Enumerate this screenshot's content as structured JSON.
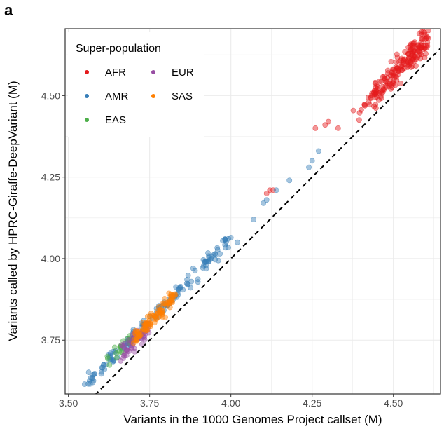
{
  "panel_label": "a",
  "chart_data": {
    "type": "scatter",
    "xlabel": "Variants in the 1000 Genomes Project callset (M)",
    "ylabel": "Variants called by HPRC-Giraffe-DeepVariant (M)",
    "xlim": [
      3.49,
      4.645
    ],
    "ylim": [
      3.585,
      4.705
    ],
    "xticks": [
      3.5,
      3.75,
      4.0,
      4.25,
      4.5
    ],
    "xtick_labels": [
      "3.50",
      "3.75",
      "4.00",
      "4.25",
      "4.50"
    ],
    "yticks": [
      3.75,
      4.0,
      4.25,
      4.5
    ],
    "ytick_labels": [
      "3.75",
      "4.00",
      "4.25",
      "4.50"
    ],
    "grid": true,
    "reference_line": {
      "style": "dashed",
      "slope": 1,
      "intercept": 0,
      "label": ""
    },
    "legend": {
      "title": "Super-population",
      "placement": "top-left",
      "entries": [
        {
          "name": "AFR",
          "color": "#e41a1c"
        },
        {
          "name": "AMR",
          "color": "#377eb8"
        },
        {
          "name": "EAS",
          "color": "#4daf4a"
        },
        {
          "name": "EUR",
          "color": "#984ea3"
        },
        {
          "name": "SAS",
          "color": "#ff7f00"
        }
      ]
    },
    "series": [
      {
        "name": "AFR",
        "color": "#e41a1c",
        "clusters": [
          {
            "x_range": [
              4.44,
              4.61
            ],
            "y_offset": 0.065,
            "spread_y": 0.018,
            "n": 190
          },
          {
            "x_range": [
              4.37,
              4.44
            ],
            "y_offset": 0.06,
            "spread_y": 0.012,
            "n": 14
          }
        ],
        "points": [
          [
            4.26,
            4.4
          ],
          [
            4.29,
            4.41
          ],
          [
            4.33,
            4.4
          ],
          [
            4.3,
            4.42
          ],
          [
            4.12,
            4.21
          ],
          [
            4.13,
            4.21
          ],
          [
            4.11,
            4.2
          ]
        ]
      },
      {
        "name": "AMR",
        "color": "#377eb8",
        "clusters": [
          {
            "x_range": [
              3.56,
              4.0
            ],
            "y_offset": 0.06,
            "spread_y": 0.012,
            "n": 150
          }
        ],
        "points": [
          [
            3.55,
            3.615
          ],
          [
            3.565,
            3.625
          ],
          [
            4.07,
            4.12
          ],
          [
            4.1,
            4.17
          ],
          [
            4.11,
            4.18
          ],
          [
            4.14,
            4.21
          ],
          [
            4.18,
            4.24
          ],
          [
            4.24,
            4.28
          ],
          [
            4.25,
            4.3
          ],
          [
            4.27,
            4.33
          ],
          [
            4.02,
            4.05
          ]
        ]
      },
      {
        "name": "EAS",
        "color": "#4daf4a",
        "clusters": [
          {
            "x_range": [
              3.62,
              3.71
            ],
            "y_offset": 0.06,
            "spread_y": 0.012,
            "n": 22
          }
        ],
        "points": []
      },
      {
        "name": "EUR",
        "color": "#984ea3",
        "clusters": [
          {
            "x_range": [
              3.66,
              3.75
            ],
            "y_offset": 0.045,
            "spread_y": 0.014,
            "n": 55
          }
        ],
        "points": []
      },
      {
        "name": "SAS",
        "color": "#ff7f00",
        "clusters": [
          {
            "x_range": [
              3.7,
              3.83
            ],
            "y_offset": 0.055,
            "spread_y": 0.013,
            "n": 95
          }
        ],
        "points": []
      }
    ]
  }
}
